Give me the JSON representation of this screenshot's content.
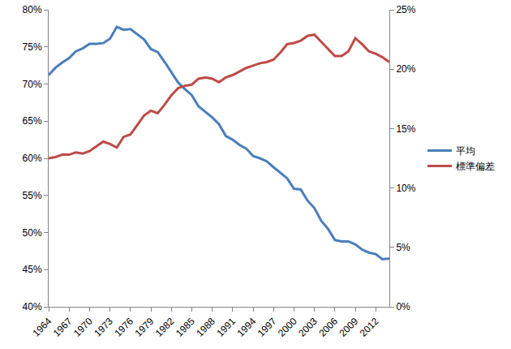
{
  "chart_data": {
    "type": "line",
    "x": [
      1964,
      1965,
      1966,
      1967,
      1968,
      1969,
      1970,
      1971,
      1972,
      1973,
      1974,
      1975,
      1976,
      1977,
      1978,
      1979,
      1980,
      1981,
      1982,
      1983,
      1984,
      1985,
      1986,
      1987,
      1988,
      1989,
      1990,
      1991,
      1992,
      1993,
      1994,
      1995,
      1996,
      1997,
      1998,
      1999,
      2000,
      2001,
      2002,
      2003,
      2004,
      2005,
      2006,
      2007,
      2008,
      2009,
      2010,
      2011,
      2012,
      2013,
      2014
    ],
    "series": [
      {
        "name": "平均",
        "color": "#4a7ebb",
        "values": [
          71.2,
          72.2,
          72.9,
          73.5,
          74.4,
          74.8,
          75.4,
          75.4,
          75.5,
          76.1,
          77.7,
          77.3,
          77.4,
          76.7,
          76.0,
          74.7,
          74.3,
          73.0,
          71.6,
          70.2,
          69.3,
          68.5,
          67.0,
          66.3,
          65.5,
          64.6,
          63.0,
          62.5,
          61.8,
          61.3,
          60.3,
          60.0,
          59.6,
          58.8,
          58.0,
          57.3,
          55.9,
          55.8,
          54.3,
          53.3,
          51.6,
          50.5,
          49.0,
          48.8,
          48.8,
          48.4,
          47.7,
          47.3,
          47.1,
          46.4,
          46.5
        ]
      },
      {
        "name": "標準偏差",
        "color": "#be4b48",
        "axis": "y2",
        "values": [
          12.5,
          12.6,
          12.8,
          12.8,
          13.0,
          12.9,
          13.1,
          13.5,
          13.9,
          13.7,
          13.4,
          14.3,
          14.5,
          15.3,
          16.1,
          16.5,
          16.3,
          17.0,
          17.8,
          18.4,
          18.6,
          18.7,
          19.2,
          19.3,
          19.2,
          18.9,
          19.3,
          19.5,
          19.8,
          20.1,
          20.3,
          20.5,
          20.6,
          20.8,
          21.4,
          22.1,
          22.2,
          22.4,
          22.8,
          22.9,
          22.3,
          21.7,
          21.1,
          21.1,
          21.5,
          22.6,
          22.1,
          21.5,
          21.3,
          21.0,
          20.6
        ]
      }
    ],
    "xlim": [
      1964,
      2014
    ],
    "xticks": [
      1964,
      1967,
      1970,
      1973,
      1976,
      1979,
      1982,
      1985,
      1988,
      1991,
      1994,
      1997,
      2000,
      2003,
      2006,
      2009,
      2012
    ],
    "ylim": [
      40,
      80
    ],
    "yticks": [
      {
        "value": 40,
        "label": "40%"
      },
      {
        "value": 45,
        "label": "45%"
      },
      {
        "value": 50,
        "label": "50%"
      },
      {
        "value": 55,
        "label": "55%"
      },
      {
        "value": 60,
        "label": "60%"
      },
      {
        "value": 65,
        "label": "65%"
      },
      {
        "value": 70,
        "label": "70%"
      },
      {
        "value": 75,
        "label": "75%"
      },
      {
        "value": 80,
        "label": "80%"
      }
    ],
    "y2lim": [
      0,
      25
    ],
    "y2ticks": [
      {
        "value": 0,
        "label": "0%"
      },
      {
        "value": 5,
        "label": "5%"
      },
      {
        "value": 10,
        "label": "10%"
      },
      {
        "value": 15,
        "label": "15%"
      },
      {
        "value": 20,
        "label": "20%"
      },
      {
        "value": 25,
        "label": "25%"
      }
    ],
    "grid": false,
    "legend": "right"
  }
}
